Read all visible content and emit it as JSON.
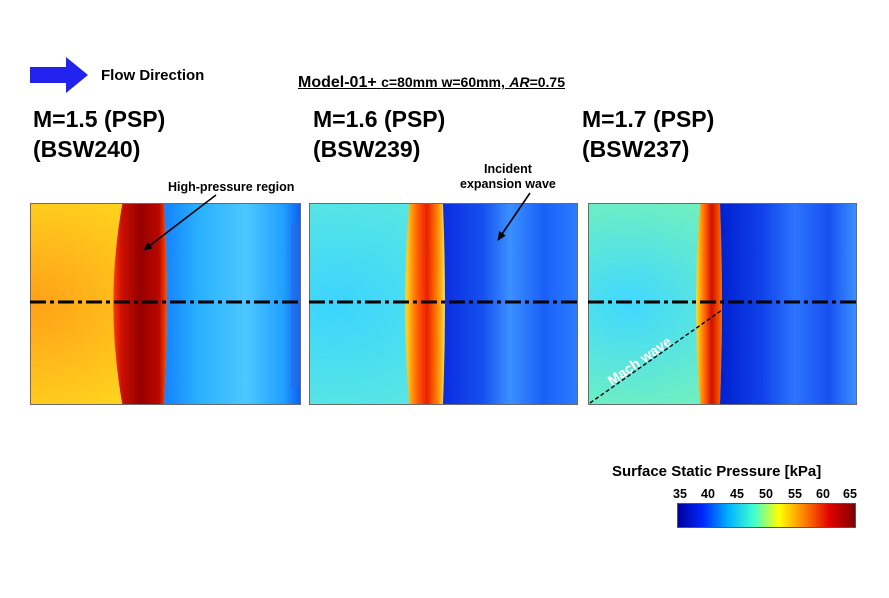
{
  "flow": {
    "label": "Flow Direction",
    "arrow_icon": "right-arrow-icon",
    "arrow_color": "#2222ee"
  },
  "model": {
    "name": "Model-01+",
    "params_prefix": "c=80mm w=60mm,",
    "ar_label": "AR",
    "ar_value": "=0.75"
  },
  "cases": [
    {
      "mach": "M=1.5 (PSP)",
      "run": "(BSW240)",
      "normalized_shock_position": 0.37
    },
    {
      "mach": "M=1.6 (PSP)",
      "run": "(BSW239)",
      "normalized_shock_position": 0.47
    },
    {
      "mach": "M=1.7 (PSP)",
      "run": "(BSW237)",
      "normalized_shock_position": 0.45
    }
  ],
  "callouts": {
    "high_pressure": "High-pressure region",
    "incident_line1": "Incident",
    "incident_line2": "expansion wave",
    "mach_wave": "Mach wave"
  },
  "colorbar": {
    "title": "Surface Static Pressure [kPa]",
    "ticks": [
      "35",
      "40",
      "45",
      "50",
      "55",
      "60",
      "65"
    ],
    "min": 35,
    "max": 65,
    "colormap": [
      "#0000a0",
      "#0028ff",
      "#00b4ff",
      "#40ffd0",
      "#ffff00",
      "#ff8000",
      "#e00000",
      "#800000"
    ]
  },
  "centerline_style": "dash-dot"
}
